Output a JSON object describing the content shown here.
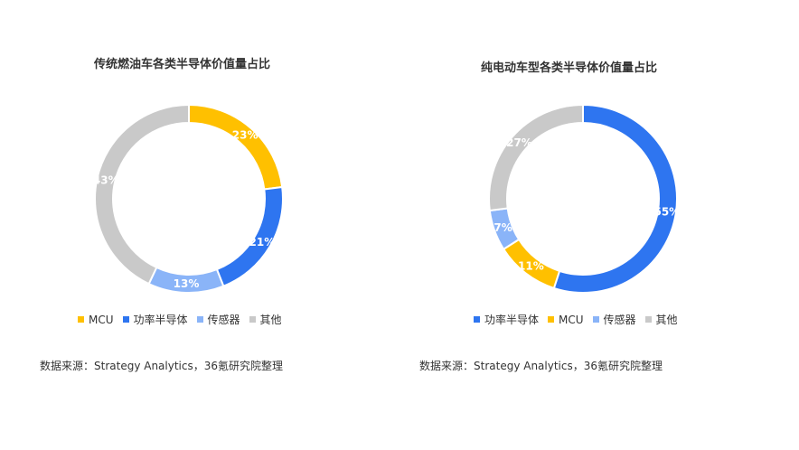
{
  "chart_data": [
    {
      "type": "donut",
      "title": "传统燃油车各类半导体价值量占比",
      "categories": [
        "MCU",
        "功率半导体",
        "传感器",
        "其他"
      ],
      "values": [
        23,
        21,
        13,
        43
      ],
      "labels": [
        "23%",
        "21%",
        "13%",
        "43%"
      ],
      "colors": [
        "#FFC000",
        "#2E75F0",
        "#8AB4F8",
        "#C9C9C9"
      ],
      "legend": "bottom",
      "source": "数据来源：Strategy Analytics，36氪研究院整理"
    },
    {
      "type": "donut",
      "title": "纯电动车型各类半导体价值量占比",
      "categories": [
        "功率半导体",
        "MCU",
        "传感器",
        "其他"
      ],
      "values": [
        55,
        11,
        7,
        27
      ],
      "labels": [
        "55%",
        "11%",
        "7%",
        "27%"
      ],
      "colors": [
        "#2E75F0",
        "#FFC000",
        "#8AB4F8",
        "#C9C9C9"
      ],
      "legend": "bottom",
      "source": "数据来源：Strategy Analytics，36氪研究院整理"
    }
  ]
}
